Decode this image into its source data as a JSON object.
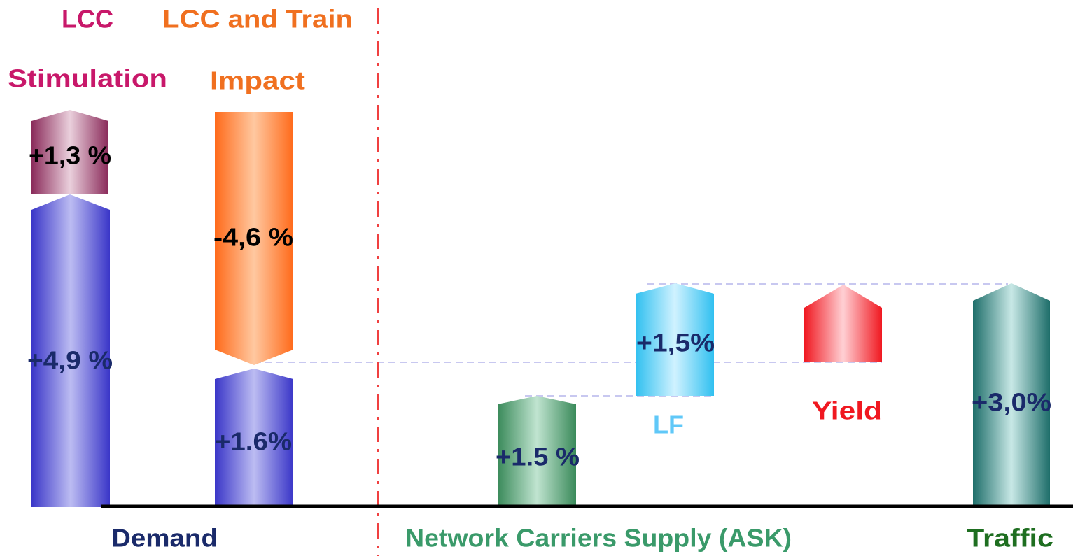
{
  "labels": {
    "lcc_title": "LCC",
    "stimulation": "Stimulation",
    "lcc_train": "LCC  and Train",
    "impact": "Impact",
    "stim_value": "+1,3 %",
    "demand_value": "+4,9 %",
    "impact_value": "-4,6 %",
    "net_demand_value": "+1.6%",
    "supply_value": "+1.5 %",
    "lf_value": "+1,5%",
    "lf": "LF",
    "yield": "Yield",
    "traffic_value": "+3,0%",
    "demand": "Demand",
    "supply": "Network Carriers Supply (ASK)",
    "traffic": "Traffic"
  }
}
